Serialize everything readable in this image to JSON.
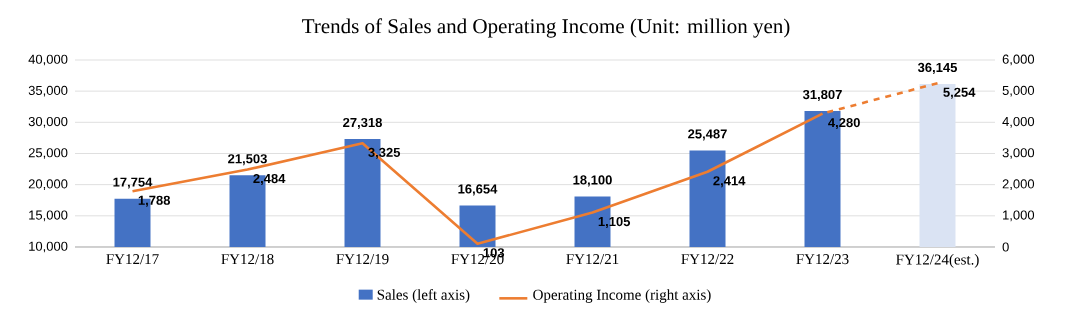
{
  "chart_data": {
    "type": "bar",
    "title": "Trends of Sales and Operating Income (Unit: million yen)",
    "categories": [
      "FY12/17",
      "FY12/18",
      "FY12/19",
      "FY12/20",
      "FY12/21",
      "FY12/22",
      "FY12/23",
      "FY12/24(est.)"
    ],
    "series": [
      {
        "name": "Sales (left axis)",
        "color": "#4472c4",
        "colors": [
          "#4472c4",
          "#4472c4",
          "#4472c4",
          "#4472c4",
          "#4472c4",
          "#4472c4",
          "#4472c4",
          "#dae3f3"
        ],
        "values": [
          17754,
          21503,
          27318,
          16654,
          18100,
          25487,
          31807,
          36145
        ],
        "value_labels": [
          "17,754",
          "21,503",
          "27,318",
          "16,654",
          "18,100",
          "25,487",
          "31,807",
          "36,145"
        ]
      },
      {
        "name": "Operating Income (right axis)",
        "type": "line",
        "axis": "y2",
        "color": "#ed7d31",
        "line_style": "solid",
        "values": [
          1788,
          2484,
          3325,
          103,
          1105,
          2414,
          4280,
          null
        ],
        "value_labels": [
          "1,788",
          "2,484",
          "3,325",
          "103",
          "1,105",
          "2,414",
          "4,280",
          null
        ]
      },
      {
        "type": "line",
        "axis": "y2",
        "color": "#ed7d31",
        "line_style": "dashed",
        "values": [
          null,
          null,
          null,
          null,
          null,
          null,
          4280,
          5254
        ],
        "value_labels": [
          null,
          null,
          null,
          null,
          null,
          null,
          null,
          "5,254"
        ]
      }
    ],
    "ylim": [
      10000,
      40000
    ],
    "yticks": [
      {
        "value": 10000,
        "label": "10,000"
      },
      {
        "value": 15000,
        "label": "15,000"
      },
      {
        "value": 20000,
        "label": "20,000"
      },
      {
        "value": 25000,
        "label": "25,000"
      },
      {
        "value": 30000,
        "label": "30,000"
      },
      {
        "value": 35000,
        "label": "35,000"
      },
      {
        "value": 40000,
        "label": "40,000"
      }
    ],
    "y2lim": [
      0,
      6000
    ],
    "y2ticks": [
      0,
      {
        "value": 1000,
        "label": "1,000"
      },
      {
        "value": 2000,
        "label": "2,000"
      },
      {
        "value": 3000,
        "label": "3,000"
      },
      {
        "value": 4000,
        "label": "4,000"
      },
      {
        "value": 5000,
        "label": "5,000"
      },
      {
        "value": 6000,
        "label": "6,000"
      }
    ],
    "grid": "y",
    "legend": "bottom",
    "marker": "none"
  }
}
